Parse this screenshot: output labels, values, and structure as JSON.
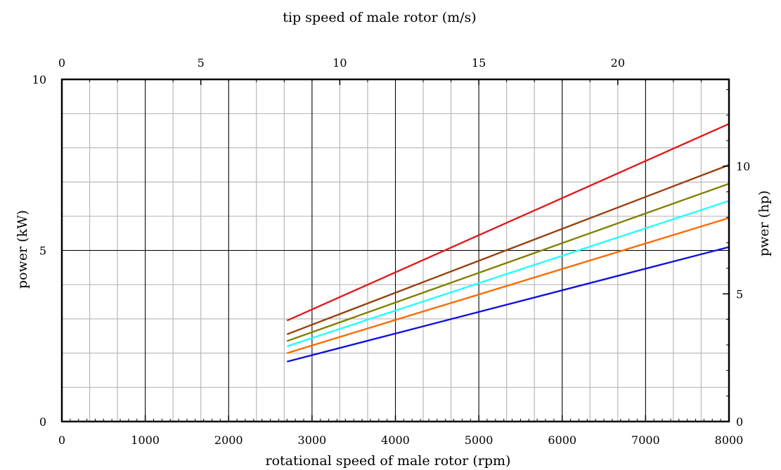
{
  "chart_data": {
    "type": "line",
    "title": "tip speed of male rotor (m/s)",
    "xlabel": "rotational speed of male rotor (rpm)",
    "ylabel": "power  (kW)",
    "y2label": "pwer  (hp)",
    "xlim": [
      0,
      8000
    ],
    "ylim": [
      0,
      10
    ],
    "x_ticks": [
      0,
      1000,
      2000,
      3000,
      4000,
      5000,
      6000,
      7000,
      8000
    ],
    "x_major_gridlines": [
      1000,
      2000,
      3000,
      4000,
      5000,
      6000,
      7000
    ],
    "x_minor_step": 333.33,
    "y_ticks": [
      0,
      5,
      10
    ],
    "y_major_gridlines": [
      5
    ],
    "y_minor_step": 1,
    "top_axis": {
      "lim": [
        0,
        24
      ],
      "ticks": [
        0,
        5,
        10,
        15,
        20
      ]
    },
    "right_axis": {
      "lim": [
        0,
        13.4
      ],
      "ticks": [
        0,
        5,
        10
      ]
    },
    "grid": true,
    "legend": "none",
    "series": [
      {
        "color": "#e31a1c",
        "x": [
          2700,
          8000
        ],
        "y": [
          2.95,
          8.7
        ]
      },
      {
        "color": "#99400f",
        "x": [
          2700,
          8000
        ],
        "y": [
          2.55,
          7.5
        ]
      },
      {
        "color": "#808000",
        "x": [
          2700,
          8000
        ],
        "y": [
          2.35,
          6.95
        ]
      },
      {
        "color": "#22ffff",
        "x": [
          2700,
          8000
        ],
        "y": [
          2.2,
          6.45
        ]
      },
      {
        "color": "#ff6a00",
        "x": [
          2700,
          8000
        ],
        "y": [
          2.0,
          5.95
        ]
      },
      {
        "color": "#1010e0",
        "x": [
          2700,
          8000
        ],
        "y": [
          1.75,
          5.1
        ]
      }
    ]
  }
}
